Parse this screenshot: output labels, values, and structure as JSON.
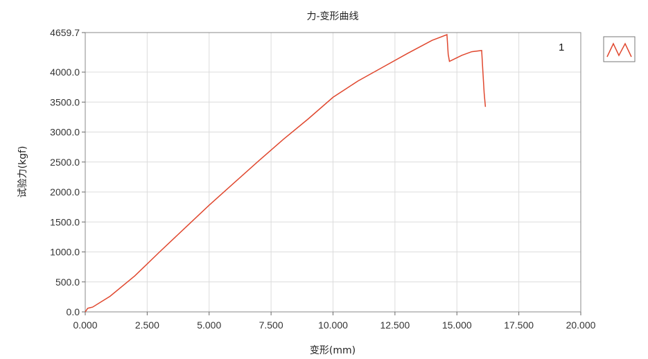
{
  "chart_data": {
    "type": "line",
    "title": "力-变形曲线",
    "xlabel": "变形(mm)",
    "ylabel": "试验力(kgf)",
    "xlim": [
      0,
      20
    ],
    "ylim": [
      0,
      4659.7
    ],
    "x_ticks": [
      "0.000",
      "2.500",
      "5.000",
      "7.500",
      "10.000",
      "12.500",
      "15.000",
      "17.500",
      "20.000"
    ],
    "y_ticks": [
      "0.0",
      "500.0",
      "1000.0",
      "1500.0",
      "2000.0",
      "2500.0",
      "3000.0",
      "3500.0",
      "4000.0",
      "4659.7"
    ],
    "grid": true,
    "legend": "top-right",
    "series": [
      {
        "label": "1",
        "color": "#e0472e",
        "x": [
          0.0,
          0.1,
          0.3,
          1.0,
          2.0,
          3.0,
          4.0,
          5.0,
          6.0,
          7.0,
          8.0,
          9.0,
          10.0,
          11.0,
          12.0,
          13.0,
          14.0,
          14.6,
          14.65,
          14.7,
          14.8,
          15.2,
          15.6,
          16.0,
          16.05,
          16.1,
          16.15
        ],
        "y": [
          0.0,
          60,
          80,
          260,
          600,
          1000,
          1390,
          1780,
          2150,
          2520,
          2880,
          3220,
          3580,
          3850,
          4080,
          4310,
          4530,
          4625,
          4300,
          4180,
          4200,
          4280,
          4340,
          4360,
          4000,
          3650,
          3420
        ]
      }
    ]
  }
}
